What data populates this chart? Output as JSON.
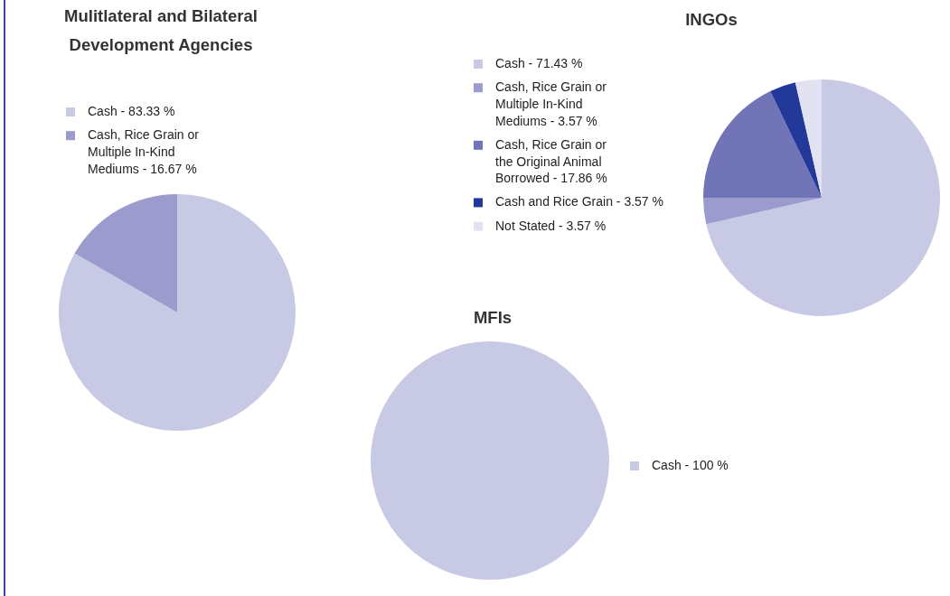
{
  "chart_data": [
    {
      "type": "pie",
      "title": "Mulitlateral and Bilateral Development Agencies",
      "categories": [
        "Cash - 83.33 %",
        "Cash, Rice Grain or Multiple In-Kind Mediums - 16.67 %"
      ],
      "values": [
        83.33,
        16.67
      ],
      "colors": [
        "#c8c9e4",
        "#9b9ccd"
      ],
      "legend": "top left"
    },
    {
      "type": "pie",
      "title": "INGOs",
      "categories": [
        "Cash - 71.43 %",
        "Cash, Rice Grain or Multiple In-Kind Mediums - 3.57 %",
        "Cash, Rice Grain or the Original Animal Borrowed - 17.86 %",
        "Cash and Rice Grain - 3.57 %",
        "Not Stated - 3.57 %"
      ],
      "values": [
        71.43,
        3.57,
        17.86,
        3.57,
        3.57
      ],
      "colors": [
        "#c8c9e4",
        "#9b9ccd",
        "#7274b8",
        "#23399a",
        "#e2e2f2"
      ],
      "legend": "left"
    },
    {
      "type": "pie",
      "title": "MFIs",
      "categories": [
        "Cash - 100 %"
      ],
      "values": [
        100
      ],
      "colors": [
        "#c8c9e4"
      ],
      "legend": "right"
    }
  ]
}
